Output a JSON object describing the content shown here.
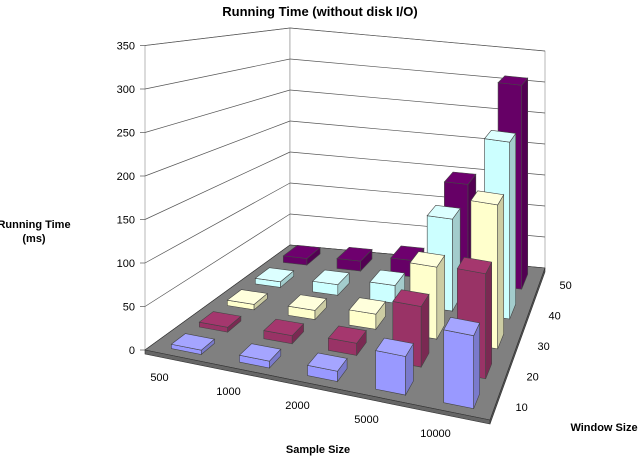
{
  "chart_data": {
    "type": "bar",
    "subtype": "3d-column",
    "title": "Running Time (without disk I/O)",
    "xlabel": "Sample Size",
    "ylabel": "Running Time (ms)",
    "ylabel_lines": [
      "Running Time",
      "(ms)"
    ],
    "zlabel": "Window Size",
    "categories": [
      "500",
      "1000",
      "2000",
      "5000",
      "10000"
    ],
    "ylim": [
      0,
      350
    ],
    "yticks": [
      "0",
      "50",
      "100",
      "150",
      "200",
      "250",
      "300",
      "350"
    ],
    "grid": true,
    "series": [
      {
        "name": "10",
        "color": "#9999ff",
        "values": [
          5,
          8,
          12,
          45,
          85
        ]
      },
      {
        "name": "20",
        "color": "#993366",
        "values": [
          6,
          10,
          15,
          75,
          130
        ]
      },
      {
        "name": "30",
        "color": "#ffffcc",
        "values": [
          7,
          12,
          20,
          95,
          190
        ]
      },
      {
        "name": "40",
        "color": "#ccffff",
        "values": [
          8,
          15,
          25,
          130,
          250
        ]
      },
      {
        "name": "50",
        "color": "#660066",
        "values": [
          10,
          15,
          25,
          150,
          310
        ]
      }
    ]
  }
}
